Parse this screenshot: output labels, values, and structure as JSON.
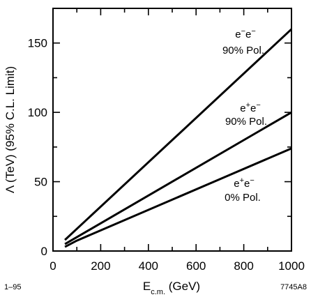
{
  "chart_data": {
    "type": "line",
    "xlabel": {
      "main": "E",
      "sub": "c.m.",
      "rest": " (GeV)"
    },
    "ylabel": "Λ (TeV) (95% C.L. Limit)",
    "xlim": [
      0,
      1000
    ],
    "ylim": [
      0,
      175
    ],
    "x_ticks": [
      0,
      200,
      400,
      600,
      800,
      1000
    ],
    "y_ticks": [
      0,
      50,
      100,
      150
    ],
    "x_minor_step": 100,
    "y_minor_step": 25,
    "grid": false,
    "series": [
      {
        "name": "e⁻e⁻ 90% Pol.",
        "label_line1": {
          "base1": "e",
          "sup1": "−",
          "base2": "e",
          "sup2": "−"
        },
        "label_line2": "90% Pol.",
        "x": [
          50,
          1000
        ],
        "y": [
          8,
          160
        ]
      },
      {
        "name": "e⁺e⁻ 90% Pol.",
        "label_line1": {
          "base1": "e",
          "sup1": "+",
          "base2": "e",
          "sup2": "−"
        },
        "label_line2": "90% Pol.",
        "x": [
          50,
          1000
        ],
        "y": [
          5,
          100
        ]
      },
      {
        "name": "e⁺e⁻ 0% Pol.",
        "label_line1": {
          "base1": "e",
          "sup1": "+",
          "base2": "e",
          "sup2": "−"
        },
        "label_line2": "0% Pol.",
        "x": [
          50,
          100,
          1000
        ],
        "y": [
          3,
          7.5,
          74
        ]
      }
    ]
  },
  "footer": {
    "left_code": "1–95",
    "right_code": "7745A8"
  }
}
